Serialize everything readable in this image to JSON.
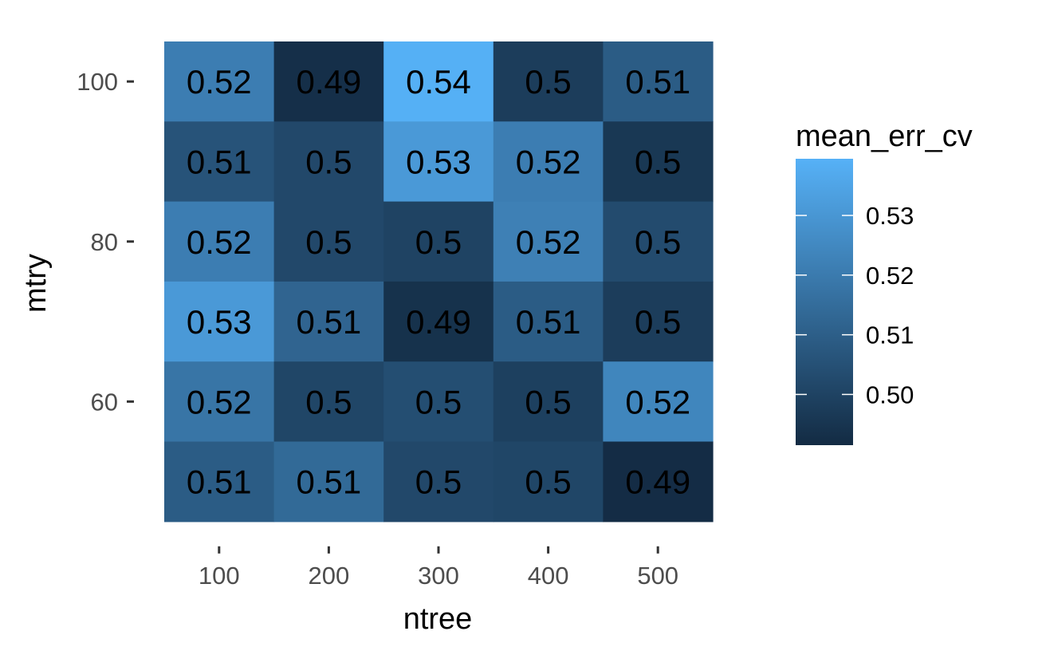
{
  "chart_data": {
    "type": "heatmap",
    "xlabel": "ntree",
    "ylabel": "mtry",
    "x_categories": [
      "100",
      "200",
      "300",
      "400",
      "500"
    ],
    "y_rows": [
      100,
      90,
      80,
      70,
      60,
      50
    ],
    "y_tick_labels": [
      "100",
      "80",
      "60"
    ],
    "y_tick_values": [
      100,
      80,
      60
    ],
    "labels": [
      [
        "0.52",
        "0.49",
        "0.54",
        "0.5",
        "0.51"
      ],
      [
        "0.51",
        "0.5",
        "0.53",
        "0.52",
        "0.5"
      ],
      [
        "0.52",
        "0.5",
        "0.5",
        "0.52",
        "0.5"
      ],
      [
        "0.53",
        "0.51",
        "0.49",
        "0.51",
        "0.5"
      ],
      [
        "0.52",
        "0.5",
        "0.5",
        "0.5",
        "0.52"
      ],
      [
        "0.51",
        "0.51",
        "0.5",
        "0.5",
        "0.49"
      ]
    ],
    "values": [
      [
        0.521,
        0.493,
        0.539,
        0.498,
        0.509
      ],
      [
        0.506,
        0.502,
        0.531,
        0.521,
        0.496
      ],
      [
        0.521,
        0.502,
        0.5,
        0.522,
        0.503
      ],
      [
        0.531,
        0.512,
        0.494,
        0.509,
        0.498
      ],
      [
        0.518,
        0.501,
        0.504,
        0.499,
        0.524
      ],
      [
        0.509,
        0.514,
        0.502,
        0.501,
        0.492
      ]
    ],
    "legend": {
      "title": "mean_err_cv",
      "min": 0.4915,
      "max": 0.5395,
      "tick_labels": [
        "0.53",
        "0.52",
        "0.51",
        "0.50"
      ],
      "tick_values": [
        0.53,
        0.52,
        0.51,
        0.5
      ],
      "low_color": "#132B43",
      "high_color": "#56B1F7"
    }
  }
}
